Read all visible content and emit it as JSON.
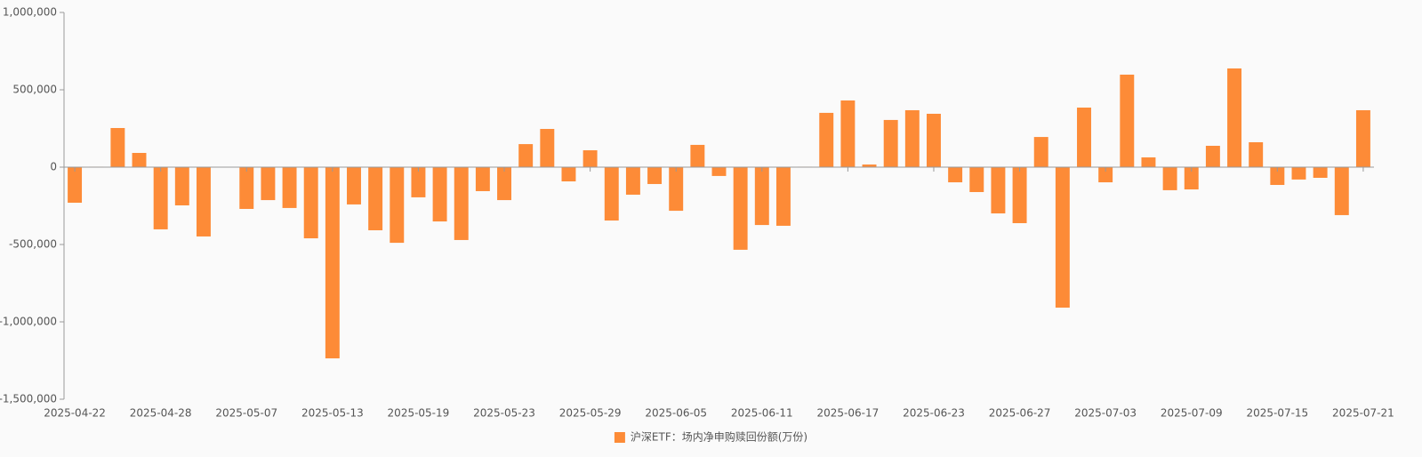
{
  "chart_data": {
    "type": "bar",
    "categories": [
      "2025-04-22",
      null,
      null,
      null,
      "2025-04-28",
      null,
      null,
      null,
      "2025-05-07",
      null,
      null,
      null,
      "2025-05-13",
      null,
      null,
      null,
      "2025-05-19",
      null,
      null,
      null,
      "2025-05-23",
      null,
      null,
      null,
      "2025-05-29",
      null,
      null,
      null,
      "2025-06-05",
      null,
      null,
      null,
      "2025-06-11",
      null,
      null,
      null,
      "2025-06-17",
      null,
      null,
      null,
      "2025-06-23",
      null,
      null,
      null,
      "2025-06-27",
      null,
      null,
      null,
      "2025-07-03",
      null,
      null,
      null,
      "2025-07-09",
      null,
      null,
      null,
      "2025-07-15",
      null,
      null,
      null,
      "2025-07-21"
    ],
    "series": [
      {
        "name": "沪深ETF：场内净申购赎回份额(万份)",
        "color": "#fd8b37",
        "values": [
          -230000,
          3000,
          253000,
          92000,
          -402000,
          -247000,
          -448000,
          0,
          -270000,
          -213000,
          -264000,
          -460000,
          -1236000,
          -241000,
          -408000,
          -489000,
          -195000,
          -351000,
          -471000,
          -155000,
          -213000,
          149000,
          247000,
          -92000,
          109000,
          -345000,
          -178000,
          -109000,
          -282000,
          144000,
          -57000,
          -534000,
          -374000,
          -379000,
          3000,
          351000,
          431000,
          17000,
          305000,
          368000,
          345000,
          -98000,
          -161000,
          -299000,
          -362000,
          195000,
          -908000,
          385000,
          -98000,
          598000,
          63000,
          -149000,
          -144000,
          138000,
          638000,
          161000,
          -115000,
          -80000,
          -69000,
          -310000,
          368000
        ]
      }
    ],
    "ylim": [
      -1500000,
      1000000
    ],
    "yticks": [
      {
        "value": -1500000,
        "label": "-1,500,000"
      },
      {
        "value": -1000000,
        "label": "-1,000,000"
      },
      {
        "value": -500000,
        "label": "-500,000"
      },
      0,
      {
        "value": 500000,
        "label": "500,000"
      },
      {
        "value": 1000000,
        "label": "1,000,000"
      }
    ],
    "grid": false,
    "legend": "bottom"
  }
}
